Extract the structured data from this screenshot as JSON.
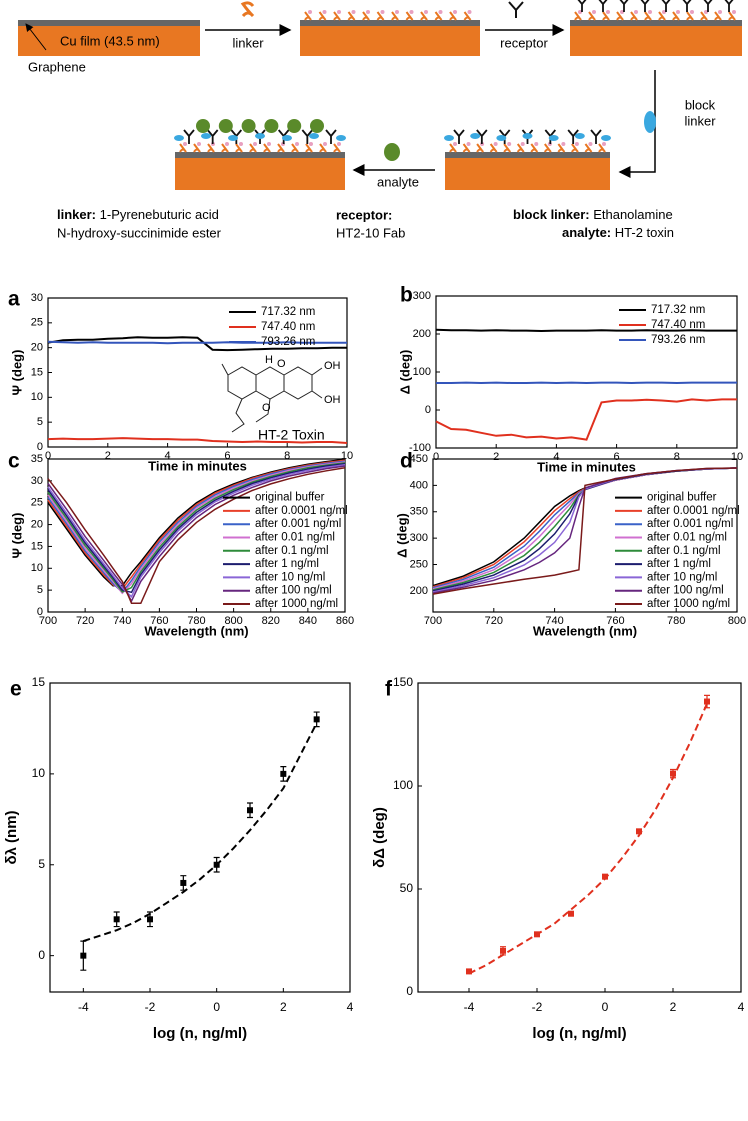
{
  "schematic": {
    "film": "Cu film (43.5 nm)",
    "graphene": "Graphene",
    "step_linker": "linker",
    "step_receptor": "receptor",
    "step_block": [
      "block",
      "linker"
    ],
    "step_analyte": "analyte",
    "legend": [
      {
        "term": "linker:",
        "text": [
          "1-Pyrenebuturic acid",
          "N-hydroxy-succinimide ester"
        ]
      },
      {
        "term": "receptor:",
        "text": [
          "HT2-10 Fab"
        ]
      },
      {
        "term": "block linker:",
        "text": [
          "Ethanolamine"
        ]
      },
      {
        "term": "analyte:",
        "text": [
          "HT-2 toxin"
        ]
      }
    ]
  },
  "chart_data": [
    {
      "type": "line",
      "panel": "a",
      "xlabel": "Time in minutes",
      "ylabel": "Ψ (deg)",
      "xlim": [
        0,
        10
      ],
      "xticks": [
        0,
        2,
        4,
        6,
        8,
        10
      ],
      "ylim": [
        0,
        30
      ],
      "yticks": [
        0,
        5,
        10,
        15,
        20,
        25,
        30
      ],
      "legend": "upper right",
      "annotation": "HT-2 Toxin",
      "structure_labels": [
        "H",
        "O",
        "OH",
        "OH",
        "O"
      ],
      "x": [
        0,
        0.5,
        1,
        1.5,
        2,
        2.5,
        3,
        3.5,
        4,
        4.5,
        5,
        5.5,
        6,
        6.5,
        7,
        7.5,
        8,
        8.5,
        9,
        9.5,
        10
      ],
      "series": [
        {
          "name": "717.32 nm",
          "color": "#000000",
          "values": [
            21.0,
            21.5,
            21.6,
            21.6,
            21.8,
            21.9,
            22.1,
            22.0,
            22.0,
            22.1,
            22.0,
            19.6,
            19.5,
            19.6,
            19.7,
            19.8,
            19.8,
            19.9,
            19.9,
            20.0,
            20.0
          ]
        },
        {
          "name": "747.40 nm",
          "color": "#e0301e",
          "values": [
            1.6,
            1.7,
            1.6,
            1.6,
            1.7,
            1.8,
            1.7,
            1.6,
            1.6,
            1.5,
            1.5,
            1.2,
            1.1,
            1.0,
            1.1,
            1.0,
            1.0,
            0.9,
            1.0,
            1.0,
            0.8
          ]
        },
        {
          "name": "793.26 nm",
          "color": "#3355bb",
          "values": [
            21.2,
            21.1,
            21.0,
            21.1,
            21.0,
            21.0,
            21.0,
            21.0,
            20.9,
            21.0,
            21.0,
            21.0,
            21.1,
            21.0,
            21.0,
            21.0,
            21.1,
            21.0,
            21.0,
            21.0,
            21.0
          ]
        }
      ]
    },
    {
      "type": "line",
      "panel": "b",
      "xlabel": "Time in minutes",
      "ylabel": "Δ (deg)",
      "xlim": [
        0,
        10
      ],
      "xticks": [
        0,
        2,
        4,
        6,
        8,
        10
      ],
      "ylim": [
        -100,
        300
      ],
      "yticks": [
        -100,
        0,
        100,
        200,
        300
      ],
      "legend": "upper right",
      "x": [
        0,
        0.5,
        1,
        1.5,
        2,
        2.5,
        3,
        3.5,
        4,
        4.5,
        5,
        5.5,
        6,
        6.5,
        7,
        7.5,
        8,
        8.5,
        9,
        9.5,
        10
      ],
      "series": [
        {
          "name": "717.32 nm",
          "color": "#000000",
          "values": [
            211,
            210,
            210,
            209,
            210,
            209,
            209,
            208,
            209,
            209,
            209,
            210,
            209,
            209,
            210,
            209,
            209,
            210,
            209,
            209,
            209
          ]
        },
        {
          "name": "747.40 nm",
          "color": "#e0301e",
          "values": [
            -30,
            -50,
            -52,
            -60,
            -68,
            -65,
            -72,
            -70,
            -75,
            -72,
            -78,
            20,
            25,
            25,
            27,
            25,
            22,
            28,
            25,
            28,
            28
          ]
        },
        {
          "name": "793.26 nm",
          "color": "#3355bb",
          "values": [
            71,
            71,
            72,
            71,
            72,
            71,
            71,
            72,
            71,
            72,
            71,
            72,
            72,
            71,
            72,
            72,
            71,
            72,
            72,
            72,
            72
          ]
        }
      ]
    },
    {
      "type": "line",
      "panel": "c",
      "xlabel": "Wavelength (nm)",
      "ylabel": "Ψ (deg)",
      "xlim": [
        700,
        860
      ],
      "xticks": [
        700,
        720,
        740,
        760,
        780,
        800,
        820,
        840,
        860
      ],
      "ylim": [
        0,
        35
      ],
      "yticks": [
        0,
        5,
        10,
        15,
        20,
        25,
        30,
        35
      ],
      "legend": "lower right",
      "x": [
        700,
        710,
        720,
        730,
        735,
        740,
        745,
        750,
        760,
        770,
        780,
        790,
        800,
        810,
        820,
        830,
        840,
        850,
        860
      ],
      "series": [
        {
          "name": "original buffer",
          "color": "#000000",
          "values": [
            25,
            19,
            13,
            8,
            6,
            6,
            9,
            11.5,
            17,
            21.5,
            25,
            27.5,
            29.3,
            30.8,
            32,
            33,
            33.8,
            34.4,
            34.9
          ]
        },
        {
          "name": "after 0.0001 ng/ml",
          "color": "#e8402a",
          "values": [
            25.6,
            19.6,
            13.5,
            8.5,
            6.2,
            5.3,
            8,
            11,
            16.5,
            21,
            24.6,
            27.2,
            29,
            30.6,
            31.8,
            32.8,
            33.6,
            34.2,
            34.7
          ]
        },
        {
          "name": "after 0.001 ng/ml",
          "color": "#3a62c8",
          "values": [
            26.2,
            20.2,
            14,
            9,
            6.5,
            4.5,
            7.2,
            10.4,
            16,
            20.5,
            24.2,
            26.8,
            28.7,
            30.3,
            31.6,
            32.6,
            33.4,
            34,
            34.5
          ]
        },
        {
          "name": "after 0.01 ng/ml",
          "color": "#d070d0",
          "values": [
            26.8,
            20.8,
            14.6,
            9.5,
            7,
            4.3,
            6.5,
            9.8,
            15.4,
            20,
            23.8,
            26.4,
            28.4,
            30,
            31.3,
            32.4,
            33.2,
            33.8,
            34.3
          ]
        },
        {
          "name": "after 0.1 ng/ml",
          "color": "#2e8b3a",
          "values": [
            27.4,
            21.4,
            15.2,
            10,
            7.4,
            4.6,
            5.6,
            9.2,
            14.8,
            19.5,
            23.3,
            26,
            28,
            29.7,
            31,
            32.1,
            33,
            33.6,
            34.1
          ]
        },
        {
          "name": "after 1 ng/ml",
          "color": "#1c1c6e",
          "values": [
            28,
            22,
            15.8,
            10.5,
            7.9,
            5,
            4.5,
            8.6,
            14.2,
            19,
            22.8,
            25.6,
            27.6,
            29.4,
            30.7,
            31.8,
            32.7,
            33.4,
            33.9
          ]
        },
        {
          "name": "after 10 ng/ml",
          "color": "#8a66d6",
          "values": [
            28.6,
            22.6,
            16.4,
            11,
            8.3,
            5.5,
            3.5,
            8,
            13.6,
            18.5,
            22.3,
            25.2,
            27.2,
            29,
            30.4,
            31.5,
            32.4,
            33.1,
            33.7
          ]
        },
        {
          "name": "after 100 ng/ml",
          "color": "#66267e",
          "values": [
            29.4,
            23.5,
            17.3,
            11.8,
            9,
            6.3,
            2.5,
            7,
            12.7,
            17.7,
            21.6,
            24.6,
            26.7,
            28.5,
            30,
            31.1,
            32,
            32.8,
            33.4
          ]
        },
        {
          "name": "after 1000 ng/ml",
          "color": "#7a1a1a",
          "values": [
            30.5,
            25,
            18.8,
            13,
            10,
            7,
            2,
            2,
            11.5,
            16.5,
            20.5,
            23.5,
            25.8,
            27.8,
            29.3,
            30.5,
            31.5,
            32.3,
            33
          ]
        }
      ]
    },
    {
      "type": "line",
      "panel": "d",
      "xlabel": "Wavelength (nm)",
      "ylabel": "Δ (deg)",
      "xlim": [
        700,
        800
      ],
      "xticks": [
        700,
        720,
        740,
        760,
        780,
        800
      ],
      "ylim": [
        160,
        450
      ],
      "yticks": [
        200,
        250,
        300,
        350,
        400,
        450
      ],
      "legend": "lower right",
      "x": [
        700,
        710,
        720,
        730,
        735,
        740,
        745,
        748,
        750,
        760,
        770,
        780,
        790,
        800
      ],
      "series": [
        {
          "name": "original buffer",
          "color": "#000000",
          "values": [
            210,
            228,
            255,
            300,
            330,
            360,
            380,
            390,
            395,
            410,
            420,
            427,
            431,
            433
          ]
        },
        {
          "name": "after 0.0001 ng/ml",
          "color": "#e8402a",
          "values": [
            208,
            225,
            250,
            293,
            322,
            352,
            375,
            388,
            394,
            410,
            420,
            427,
            431,
            433
          ]
        },
        {
          "name": "after 0.001 ng/ml",
          "color": "#3a62c8",
          "values": [
            206,
            222,
            245,
            285,
            313,
            344,
            370,
            386,
            393,
            410,
            420,
            427,
            431,
            433
          ]
        },
        {
          "name": "after 0.01 ng/ml",
          "color": "#d070d0",
          "values": [
            204,
            219,
            240,
            276,
            303,
            334,
            364,
            384,
            392,
            410,
            420,
            427,
            431,
            433
          ]
        },
        {
          "name": "after 0.1 ng/ml",
          "color": "#2e8b3a",
          "values": [
            202,
            216,
            235,
            267,
            292,
            322,
            356,
            382,
            392,
            411,
            421,
            427,
            431,
            433
          ]
        },
        {
          "name": "after 1 ng/ml",
          "color": "#1c1c6e",
          "values": [
            200,
            213,
            230,
            258,
            280,
            308,
            346,
            380,
            392,
            411,
            421,
            427,
            431,
            433
          ]
        },
        {
          "name": "after 10 ng/ml",
          "color": "#8a66d6",
          "values": [
            198,
            210,
            225,
            249,
            268,
            292,
            330,
            378,
            393,
            412,
            422,
            428,
            431,
            433
          ]
        },
        {
          "name": "after 100 ng/ml",
          "color": "#66267e",
          "values": [
            196,
            207,
            220,
            240,
            254,
            272,
            300,
            360,
            395,
            413,
            422,
            428,
            432,
            433
          ]
        },
        {
          "name": "after 1000 ng/ml",
          "color": "#7a1a1a",
          "values": [
            194,
            204,
            213,
            222,
            226,
            230,
            236,
            240,
            400,
            412,
            422,
            428,
            432,
            433
          ]
        }
      ]
    },
    {
      "type": "scatter",
      "panel": "e",
      "xlabel": "log (n, ng/ml)",
      "ylabel": "δλ (nm)",
      "color": "#000000",
      "xlim": [
        -5,
        4
      ],
      "xticks": [
        -4,
        -2,
        0,
        2,
        4
      ],
      "ylim": [
        -2,
        15
      ],
      "yticks": [
        0,
        5,
        10,
        15
      ],
      "x": [
        -4,
        -3,
        -2,
        -1,
        0,
        1,
        2,
        3
      ],
      "values": [
        0,
        2,
        2,
        4,
        5,
        8,
        10,
        13
      ],
      "errors": [
        0.8,
        0.4,
        0.4,
        0.4,
        0.4,
        0.4,
        0.4,
        0.4
      ],
      "fit": {
        "x": [
          -4,
          -3.5,
          -3,
          -2.5,
          -2,
          -1.5,
          -1,
          -0.5,
          0,
          0.5,
          1,
          1.5,
          2,
          2.5,
          3
        ],
        "values": [
          0.8,
          1.1,
          1.4,
          1.8,
          2.3,
          2.9,
          3.5,
          4.2,
          5,
          5.9,
          6.9,
          8,
          9.2,
          11,
          12.8
        ]
      }
    },
    {
      "type": "scatter",
      "panel": "f",
      "xlabel": "log (n, ng/ml)",
      "ylabel": "δΔ (deg)",
      "color": "#e0301e",
      "xlim": [
        -5.5,
        4
      ],
      "xticks": [
        -4,
        -2,
        0,
        2,
        4
      ],
      "ylim": [
        0,
        150
      ],
      "yticks": [
        0,
        50,
        100,
        150
      ],
      "x": [
        -4,
        -3,
        -2,
        -1,
        0,
        1,
        2,
        3
      ],
      "values": [
        10,
        20,
        28,
        38,
        56,
        78,
        106,
        141
      ],
      "errors": [
        1,
        2,
        1,
        1,
        1,
        1,
        2,
        3
      ],
      "fit": {
        "x": [
          -4,
          -3.5,
          -3,
          -2.5,
          -2,
          -1.5,
          -1,
          -0.5,
          0,
          0.5,
          1,
          1.5,
          2,
          2.5,
          3
        ],
        "values": [
          9,
          13,
          18,
          23,
          28,
          33,
          40,
          47,
          55,
          65,
          76,
          89,
          104,
          121,
          140
        ]
      }
    }
  ]
}
